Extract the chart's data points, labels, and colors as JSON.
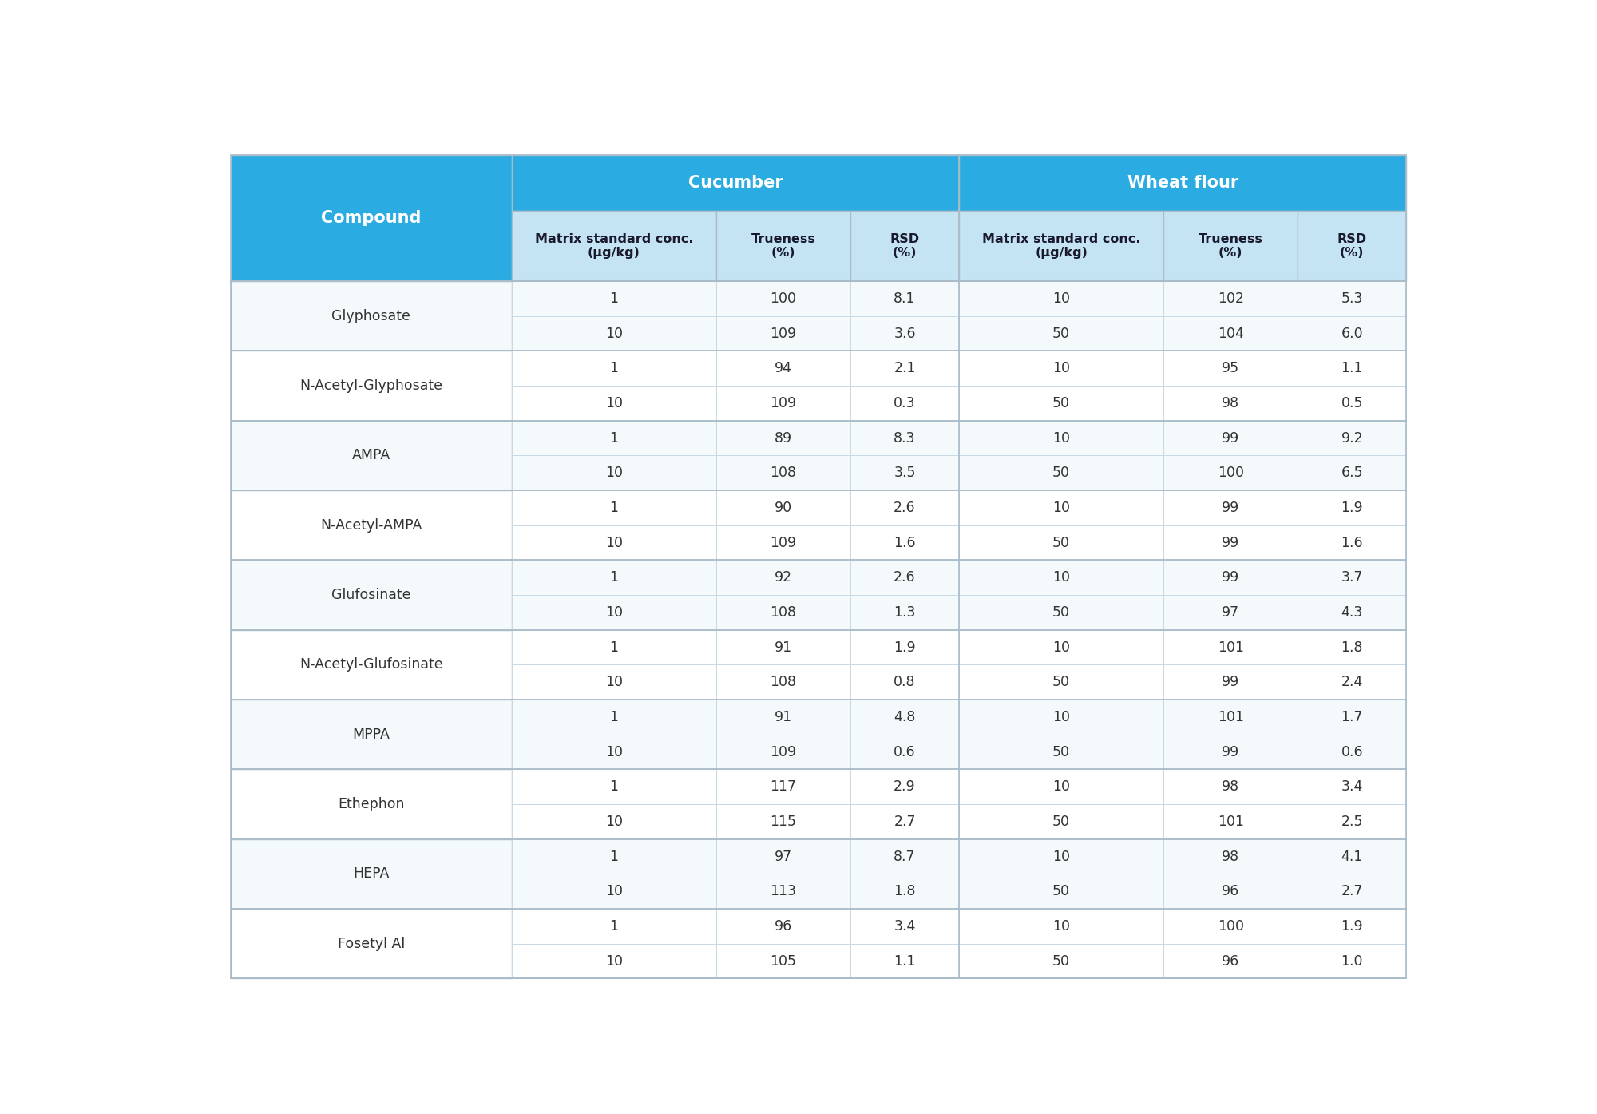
{
  "rows": [
    {
      "compound": "Glyphosate",
      "cuc_conc": [
        "1",
        "10"
      ],
      "cuc_trueness": [
        "100",
        "109"
      ],
      "cuc_rsd": [
        "8.1",
        "3.6"
      ],
      "wf_conc": [
        "10",
        "50"
      ],
      "wf_trueness": [
        "102",
        "104"
      ],
      "wf_rsd": [
        "5.3",
        "6.0"
      ]
    },
    {
      "compound": "N-Acetyl-Glyphosate",
      "cuc_conc": [
        "1",
        "10"
      ],
      "cuc_trueness": [
        "94",
        "109"
      ],
      "cuc_rsd": [
        "2.1",
        "0.3"
      ],
      "wf_conc": [
        "10",
        "50"
      ],
      "wf_trueness": [
        "95",
        "98"
      ],
      "wf_rsd": [
        "1.1",
        "0.5"
      ]
    },
    {
      "compound": "AMPA",
      "cuc_conc": [
        "1",
        "10"
      ],
      "cuc_trueness": [
        "89",
        "108"
      ],
      "cuc_rsd": [
        "8.3",
        "3.5"
      ],
      "wf_conc": [
        "10",
        "50"
      ],
      "wf_trueness": [
        "99",
        "100"
      ],
      "wf_rsd": [
        "9.2",
        "6.5"
      ]
    },
    {
      "compound": "N-Acetyl-AMPA",
      "cuc_conc": [
        "1",
        "10"
      ],
      "cuc_trueness": [
        "90",
        "109"
      ],
      "cuc_rsd": [
        "2.6",
        "1.6"
      ],
      "wf_conc": [
        "10",
        "50"
      ],
      "wf_trueness": [
        "99",
        "99"
      ],
      "wf_rsd": [
        "1.9",
        "1.6"
      ]
    },
    {
      "compound": "Glufosinate",
      "cuc_conc": [
        "1",
        "10"
      ],
      "cuc_trueness": [
        "92",
        "108"
      ],
      "cuc_rsd": [
        "2.6",
        "1.3"
      ],
      "wf_conc": [
        "10",
        "50"
      ],
      "wf_trueness": [
        "99",
        "97"
      ],
      "wf_rsd": [
        "3.7",
        "4.3"
      ]
    },
    {
      "compound": "N-Acetyl-Glufosinate",
      "cuc_conc": [
        "1",
        "10"
      ],
      "cuc_trueness": [
        "91",
        "108"
      ],
      "cuc_rsd": [
        "1.9",
        "0.8"
      ],
      "wf_conc": [
        "10",
        "50"
      ],
      "wf_trueness": [
        "101",
        "99"
      ],
      "wf_rsd": [
        "1.8",
        "2.4"
      ]
    },
    {
      "compound": "MPPA",
      "cuc_conc": [
        "1",
        "10"
      ],
      "cuc_trueness": [
        "91",
        "109"
      ],
      "cuc_rsd": [
        "4.8",
        "0.6"
      ],
      "wf_conc": [
        "10",
        "50"
      ],
      "wf_trueness": [
        "101",
        "99"
      ],
      "wf_rsd": [
        "1.7",
        "0.6"
      ]
    },
    {
      "compound": "Ethephon",
      "cuc_conc": [
        "1",
        "10"
      ],
      "cuc_trueness": [
        "117",
        "115"
      ],
      "cuc_rsd": [
        "2.9",
        "2.7"
      ],
      "wf_conc": [
        "10",
        "50"
      ],
      "wf_trueness": [
        "98",
        "101"
      ],
      "wf_rsd": [
        "3.4",
        "2.5"
      ]
    },
    {
      "compound": "HEPA",
      "cuc_conc": [
        "1",
        "10"
      ],
      "cuc_trueness": [
        "97",
        "113"
      ],
      "cuc_rsd": [
        "8.7",
        "1.8"
      ],
      "wf_conc": [
        "10",
        "50"
      ],
      "wf_trueness": [
        "98",
        "96"
      ],
      "wf_rsd": [
        "4.1",
        "2.7"
      ]
    },
    {
      "compound": "Fosetyl Al",
      "cuc_conc": [
        "1",
        "10"
      ],
      "cuc_trueness": [
        "96",
        "105"
      ],
      "cuc_rsd": [
        "3.4",
        "1.1"
      ],
      "wf_conc": [
        "10",
        "50"
      ],
      "wf_trueness": [
        "100",
        "96"
      ],
      "wf_rsd": [
        "1.9",
        "1.0"
      ]
    }
  ],
  "color_hdr_dark": "#2AABE2",
  "color_hdr_subrow": "#C5E4F3",
  "color_row_odd": "#F4F9FC",
  "color_row_even": "#FFFFFF",
  "color_border_group": "#AABCC8",
  "color_border_inner": "#C8D9E3",
  "color_text_white": "#FFFFFF",
  "color_text_dark": "#1A1A2E",
  "color_text_cell": "#333333",
  "col_widths_rel": [
    2.2,
    1.6,
    1.05,
    0.85,
    1.6,
    1.05,
    0.85
  ],
  "header1_text": [
    "Cucumber",
    "Wheat flour"
  ],
  "header2_text": [
    "Matrix standard conc.\n(µg/kg)",
    "Trueness\n(%)",
    "RSD\n(%)",
    "Matrix standard conc.\n(µg/kg)",
    "Trueness\n(%)",
    "RSD\n(%)"
  ],
  "compound_label": "Compound",
  "fig_width": 20.0,
  "fig_height": 13.95,
  "dpi": 100
}
